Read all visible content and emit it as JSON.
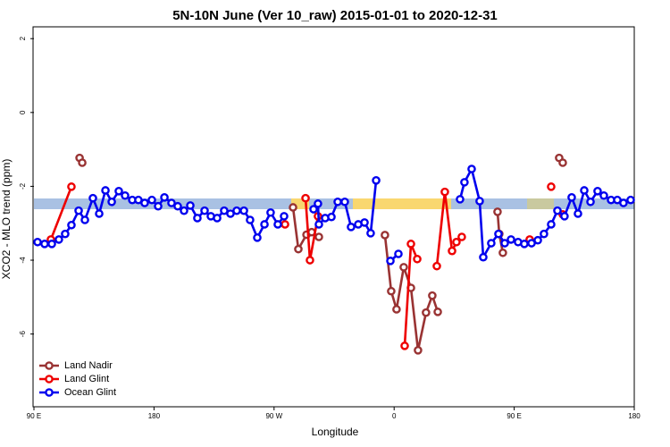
{
  "chart_data": {
    "type": "line",
    "title": "5N-10N June (Ver 10_raw)   2015-01-01 to 2020-12-31",
    "x_label": "Longitude",
    "y_label": "XCO2 - MLO trend (ppm)",
    "xlim": [
      90,
      540
    ],
    "ylim": [
      -7.97,
      2.32
    ],
    "xticks": [
      {
        "value": 90,
        "label": "90 E"
      },
      {
        "value": 180,
        "label": "180"
      },
      {
        "value": 270,
        "label": "90 W"
      },
      {
        "value": 360,
        "label": "0"
      },
      {
        "value": 450,
        "label": "90 E"
      },
      {
        "value": 540,
        "label": "180"
      }
    ],
    "yticks": [
      2,
      0,
      -2,
      -4,
      -6
    ],
    "legend": "bottomleft",
    "series": [
      {
        "name": "Land Nadir",
        "color": "#993333",
        "x": [
          124.2,
          126.2,
          null,
          284.2,
          288.2,
          294.3,
          298.2,
          303.6,
          null,
          353.1,
          357.8,
          361.8,
          367.2,
          372.6,
          377.9,
          383.9,
          388.6,
          392.7,
          null,
          437.5,
          438.8,
          441.5,
          null,
          483.7,
          486.4
        ],
        "values": [
          -1.23,
          -1.36,
          null,
          -2.57,
          -3.7,
          -3.31,
          -3.24,
          -3.37,
          null,
          -3.32,
          -4.84,
          -5.33,
          -4.19,
          -4.75,
          -6.44,
          -5.42,
          -4.96,
          -5.4,
          null,
          -2.69,
          -3.29,
          -3.8,
          null,
          -1.23,
          -1.36
        ]
      },
      {
        "name": "Land Glint",
        "color": "#ee0000",
        "x": [
          102.7,
          118.1,
          null,
          278.2,
          null,
          293.6,
          296.9,
          302.9,
          null,
          367.9,
          372.6,
          377.3,
          null,
          392.0,
          398.0,
          403.4,
          406.7,
          410.7,
          null,
          461.6,
          null,
          477.7,
          null,
          486.4
        ],
        "values": [
          -3.44,
          -2.01,
          null,
          -3.03,
          null,
          -2.32,
          -4.0,
          -2.81,
          null,
          -6.32,
          -3.56,
          -3.97,
          null,
          -4.16,
          -2.15,
          -3.75,
          -3.51,
          -3.37,
          null,
          -3.44,
          null,
          -2.01,
          null,
          -2.76
        ]
      },
      {
        "name": "Ocean Glint",
        "color": "#0000ee",
        "x": [
          92.7,
          98.0,
          103.4,
          108.7,
          113.4,
          118.1,
          123.5,
          128.2,
          134.2,
          138.9,
          143.6,
          148.3,
          153.6,
          158.3,
          163.7,
          168.3,
          173.0,
          178.4,
          183.1,
          187.8,
          193.1,
          197.8,
          202.5,
          207.2,
          212.5,
          217.9,
          222.6,
          227.3,
          232.6,
          237.3,
          242.0,
          247.4,
          252.0,
          257.4,
          262.8,
          267.4,
          272.8,
          277.5,
          null,
          299.6,
          302.9,
          303.6,
          308.3,
          313.0,
          317.7,
          323.0,
          327.7,
          333.1,
          337.8,
          342.4,
          346.5,
          null,
          357.2,
          363.2,
          null,
          409.4,
          412.7,
          418.1,
          424.1,
          426.8,
          432.8,
          438.2,
          442.9,
          447.6,
          452.9,
          457.6,
          463.0,
          467.7,
          472.3,
          477.7,
          482.4,
          487.7,
          493.1,
          497.8,
          502.5,
          507.2,
          512.5,
          517.2,
          522.6,
          527.3,
          531.9,
          537.3
        ],
        "values": [
          -3.51,
          -3.56,
          -3.56,
          -3.44,
          -3.29,
          -3.05,
          -2.66,
          -2.91,
          -2.32,
          -2.74,
          -2.11,
          -2.42,
          -2.13,
          -2.25,
          -2.37,
          -2.37,
          -2.45,
          -2.37,
          -2.54,
          -2.3,
          -2.45,
          -2.54,
          -2.66,
          -2.52,
          -2.86,
          -2.66,
          -2.81,
          -2.86,
          -2.66,
          -2.74,
          -2.66,
          -2.66,
          -2.91,
          -3.39,
          -3.03,
          -2.71,
          -3.03,
          -2.81,
          null,
          -2.62,
          -2.47,
          -3.03,
          -2.86,
          -2.83,
          -2.42,
          -2.42,
          -3.1,
          -3.03,
          -2.98,
          -3.27,
          -1.84,
          null,
          -4.02,
          -3.83,
          null,
          -2.35,
          -1.89,
          -1.53,
          -2.4,
          -3.92,
          -3.54,
          -3.29,
          -3.54,
          -3.44,
          -3.51,
          -3.56,
          -3.54,
          -3.46,
          -3.29,
          -3.03,
          -2.66,
          -2.81,
          -2.3,
          -2.74,
          -2.11,
          -2.42,
          -2.13,
          -2.25,
          -2.37,
          -2.37,
          -2.45,
          -2.37
        ]
      }
    ]
  }
}
